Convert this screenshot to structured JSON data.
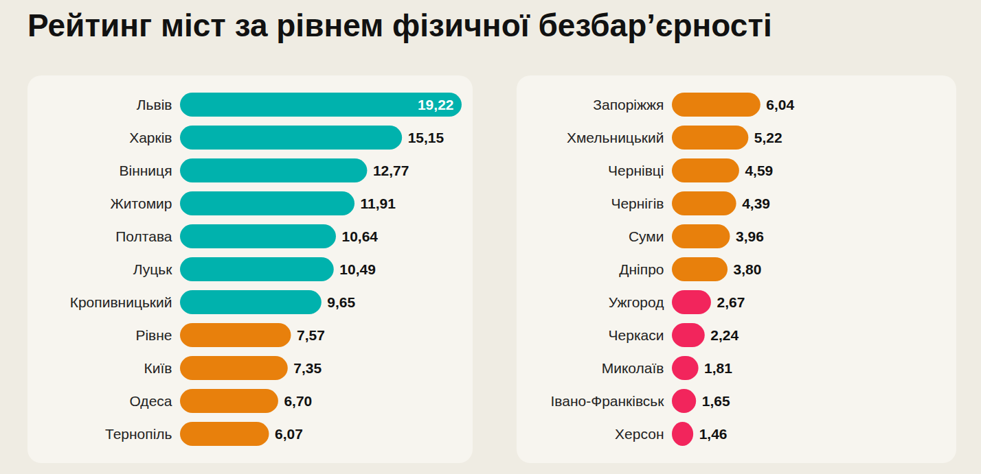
{
  "chart_data": {
    "type": "bar",
    "title": "Рейтинг міст за рівнем фізичної безбар’єрності",
    "orientation": "horizontal",
    "data_labels": true,
    "tick_labels": "y",
    "grid": false,
    "categories": [
      "Львів",
      "Харків",
      "Вінниця",
      "Житомир",
      "Полтава",
      "Луцьк",
      "Кропивницький",
      "Рівне",
      "Київ",
      "Одеса",
      "Тернопіль",
      "Запоріжжя",
      "Хмельницький",
      "Чернівці",
      "Чернігів",
      "Суми",
      "Дніпро",
      "Ужгород",
      "Черкаси",
      "Миколаїв",
      "Івано-Франківськ",
      "Херсон"
    ],
    "values": [
      19.22,
      15.15,
      12.77,
      11.91,
      10.64,
      10.49,
      9.65,
      7.57,
      7.35,
      6.7,
      6.07,
      6.04,
      5.22,
      4.59,
      4.39,
      3.96,
      3.8,
      2.67,
      2.24,
      1.81,
      1.65,
      1.46
    ],
    "value_labels": [
      "19,22",
      "15,15",
      "12,77",
      "11,91",
      "10,64",
      "10,49",
      "9,65",
      "7,57",
      "7,35",
      "6,70",
      "6,07",
      "6,04",
      "5,22",
      "4,59",
      "4,39",
      "3,96",
      "3,80",
      "2,67",
      "2,24",
      "1,81",
      "1,65",
      "1,46"
    ],
    "colors": [
      "#00b2ad",
      "#00b2ad",
      "#00b2ad",
      "#00b2ad",
      "#00b2ad",
      "#00b2ad",
      "#00b2ad",
      "#e8800c",
      "#e8800c",
      "#e8800c",
      "#e8800c",
      "#e8800c",
      "#e8800c",
      "#e8800c",
      "#e8800c",
      "#e8800c",
      "#e8800c",
      "#f2255c",
      "#f2255c",
      "#f2255c",
      "#f2255c",
      "#f2255c"
    ]
  }
}
